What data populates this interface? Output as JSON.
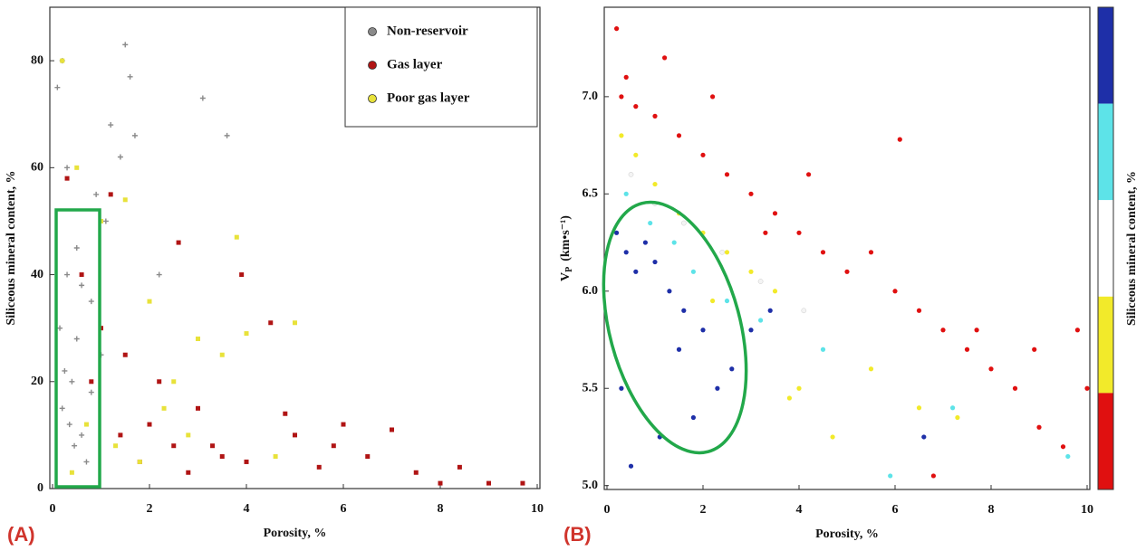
{
  "chart_data": [
    {
      "type": "scatter",
      "x_label": "Porosity, %",
      "y_label": "Siliceous mineral content, %",
      "xlim": [
        0,
        10
      ],
      "ylim": [
        0,
        90
      ],
      "xticks": [
        0,
        2,
        4,
        6,
        8,
        10
      ],
      "yticks": [
        0,
        20,
        40,
        60,
        80
      ],
      "legend": "upper right",
      "series": [
        {
          "name": "Non-reservoir",
          "color": "#8a8a8a",
          "marker": "plus",
          "x": [
            0.1,
            0.2,
            0.3,
            0.15,
            0.5,
            0.4,
            0.8,
            0.6,
            1.0,
            1.2,
            1.5,
            1.6,
            1.7,
            0.9,
            0.3,
            0.2,
            0.7,
            1.1,
            2.2,
            3.1,
            3.6,
            0.5,
            0.35,
            0.25,
            1.4,
            0.45,
            0.6,
            0.8
          ],
          "values": [
            75,
            80,
            60,
            30,
            45,
            20,
            35,
            10,
            25,
            68,
            83,
            77,
            66,
            55,
            40,
            15,
            5,
            50,
            40,
            73,
            66,
            28,
            12,
            22,
            62,
            8,
            38,
            18
          ]
        },
        {
          "name": "Gas layer",
          "color": "#b01414",
          "marker": "square",
          "x": [
            0.3,
            0.6,
            1.0,
            1.5,
            2.0,
            2.5,
            3.0,
            3.5,
            4.0,
            4.5,
            5.0,
            5.5,
            6.0,
            6.5,
            7.0,
            7.5,
            8.0,
            8.4,
            9.0,
            9.7,
            1.2,
            2.2,
            3.3,
            4.8,
            0.8,
            1.8,
            2.8,
            3.9,
            5.8,
            2.6,
            1.4
          ],
          "values": [
            58,
            40,
            30,
            25,
            12,
            8,
            15,
            6,
            5,
            31,
            10,
            4,
            12,
            6,
            11,
            3,
            1,
            4,
            1,
            1,
            55,
            20,
            8,
            14,
            20,
            5,
            3,
            40,
            8,
            46,
            10
          ]
        },
        {
          "name": "Poor gas layer",
          "color": "#e8e23a",
          "marker": "square",
          "x": [
            0.2,
            0.5,
            1.0,
            1.5,
            2.0,
            2.5,
            3.0,
            3.5,
            4.0,
            5.0,
            0.7,
            1.3,
            2.3,
            3.8,
            1.8,
            0.4,
            2.8,
            4.6
          ],
          "values": [
            80,
            60,
            50,
            54,
            35,
            20,
            28,
            25,
            29,
            31,
            12,
            8,
            15,
            47,
            5,
            3,
            10,
            6
          ]
        }
      ]
    },
    {
      "type": "scatter",
      "x_label": "Porosity, %",
      "y_label": "V",
      "y_label_sub": "P",
      "y_label_unit": "(km•s⁻¹)",
      "xlim": [
        0,
        10
      ],
      "ylim": [
        4.98,
        7.46
      ],
      "xticks": [
        0,
        2,
        4,
        6,
        8,
        10
      ],
      "yticks": [
        {
          "value": 5,
          "label": "5.0"
        },
        5.5,
        {
          "value": 6,
          "label": "6.0"
        },
        6.5,
        {
          "value": 7,
          "label": "7.0"
        }
      ],
      "colorbar": {
        "label": "Siliceous mineral content, %",
        "colors": [
          "#1e2fa8",
          "#5de3e8",
          "#ffffff",
          "#f2ea2a",
          "#e01010"
        ]
      },
      "series": [
        {
          "color": "#e01010",
          "marker": "dot",
          "x": [
            0.2,
            0.4,
            0.6,
            1.0,
            1.5,
            2.0,
            2.5,
            3.0,
            3.5,
            4.0,
            4.5,
            5.0,
            5.5,
            6.0,
            6.5,
            7.0,
            7.5,
            8.0,
            8.5,
            9.0,
            9.5,
            10.0,
            0.3,
            1.2,
            2.2,
            3.3,
            4.2,
            6.1,
            7.7,
            8.9,
            9.8,
            6.8
          ],
          "values": [
            7.35,
            7.1,
            6.95,
            6.9,
            6.8,
            6.7,
            6.6,
            6.5,
            6.4,
            6.3,
            6.2,
            6.1,
            6.2,
            6.0,
            5.9,
            5.8,
            5.7,
            5.6,
            5.5,
            5.3,
            5.2,
            5.5,
            7.0,
            7.2,
            7.0,
            6.3,
            6.6,
            6.78,
            5.8,
            5.7,
            5.8,
            5.05
          ]
        },
        {
          "color": "#f2ea2a",
          "marker": "dot",
          "x": [
            0.3,
            0.6,
            1.0,
            1.5,
            2.0,
            2.5,
            3.0,
            3.5,
            4.0,
            4.7,
            5.5,
            6.5,
            7.3,
            3.8,
            2.2
          ],
          "values": [
            6.8,
            6.7,
            6.55,
            6.4,
            6.3,
            6.2,
            6.1,
            6.0,
            5.5,
            5.25,
            5.6,
            5.4,
            5.35,
            5.45,
            5.95
          ]
        },
        {
          "color": "#f4f4f4",
          "marker": "dot",
          "x": [
            0.5,
            1.0,
            1.6,
            2.4,
            3.2,
            4.1
          ],
          "values": [
            6.6,
            6.45,
            6.35,
            6.2,
            6.05,
            5.9
          ]
        },
        {
          "color": "#5de3e8",
          "marker": "dot",
          "x": [
            0.4,
            0.9,
            1.4,
            1.8,
            2.5,
            3.2,
            4.5,
            5.9,
            7.2,
            9.6
          ],
          "values": [
            6.5,
            6.35,
            6.25,
            6.1,
            5.95,
            5.85,
            5.7,
            5.05,
            5.4,
            5.15
          ]
        },
        {
          "color": "#1e2fa8",
          "marker": "dot",
          "x": [
            0.2,
            0.4,
            0.6,
            0.8,
            1.0,
            1.3,
            1.6,
            2.0,
            2.3,
            0.5,
            1.1,
            1.8,
            3.0,
            3.4,
            2.6,
            0.3,
            1.5,
            6.6
          ],
          "values": [
            6.3,
            6.2,
            6.1,
            6.25,
            6.15,
            6.0,
            5.9,
            5.8,
            5.5,
            5.1,
            5.25,
            5.35,
            5.8,
            5.9,
            5.6,
            5.5,
            5.7,
            5.25
          ]
        }
      ]
    }
  ],
  "panel_labels": [
    "(A)",
    "(B)"
  ]
}
